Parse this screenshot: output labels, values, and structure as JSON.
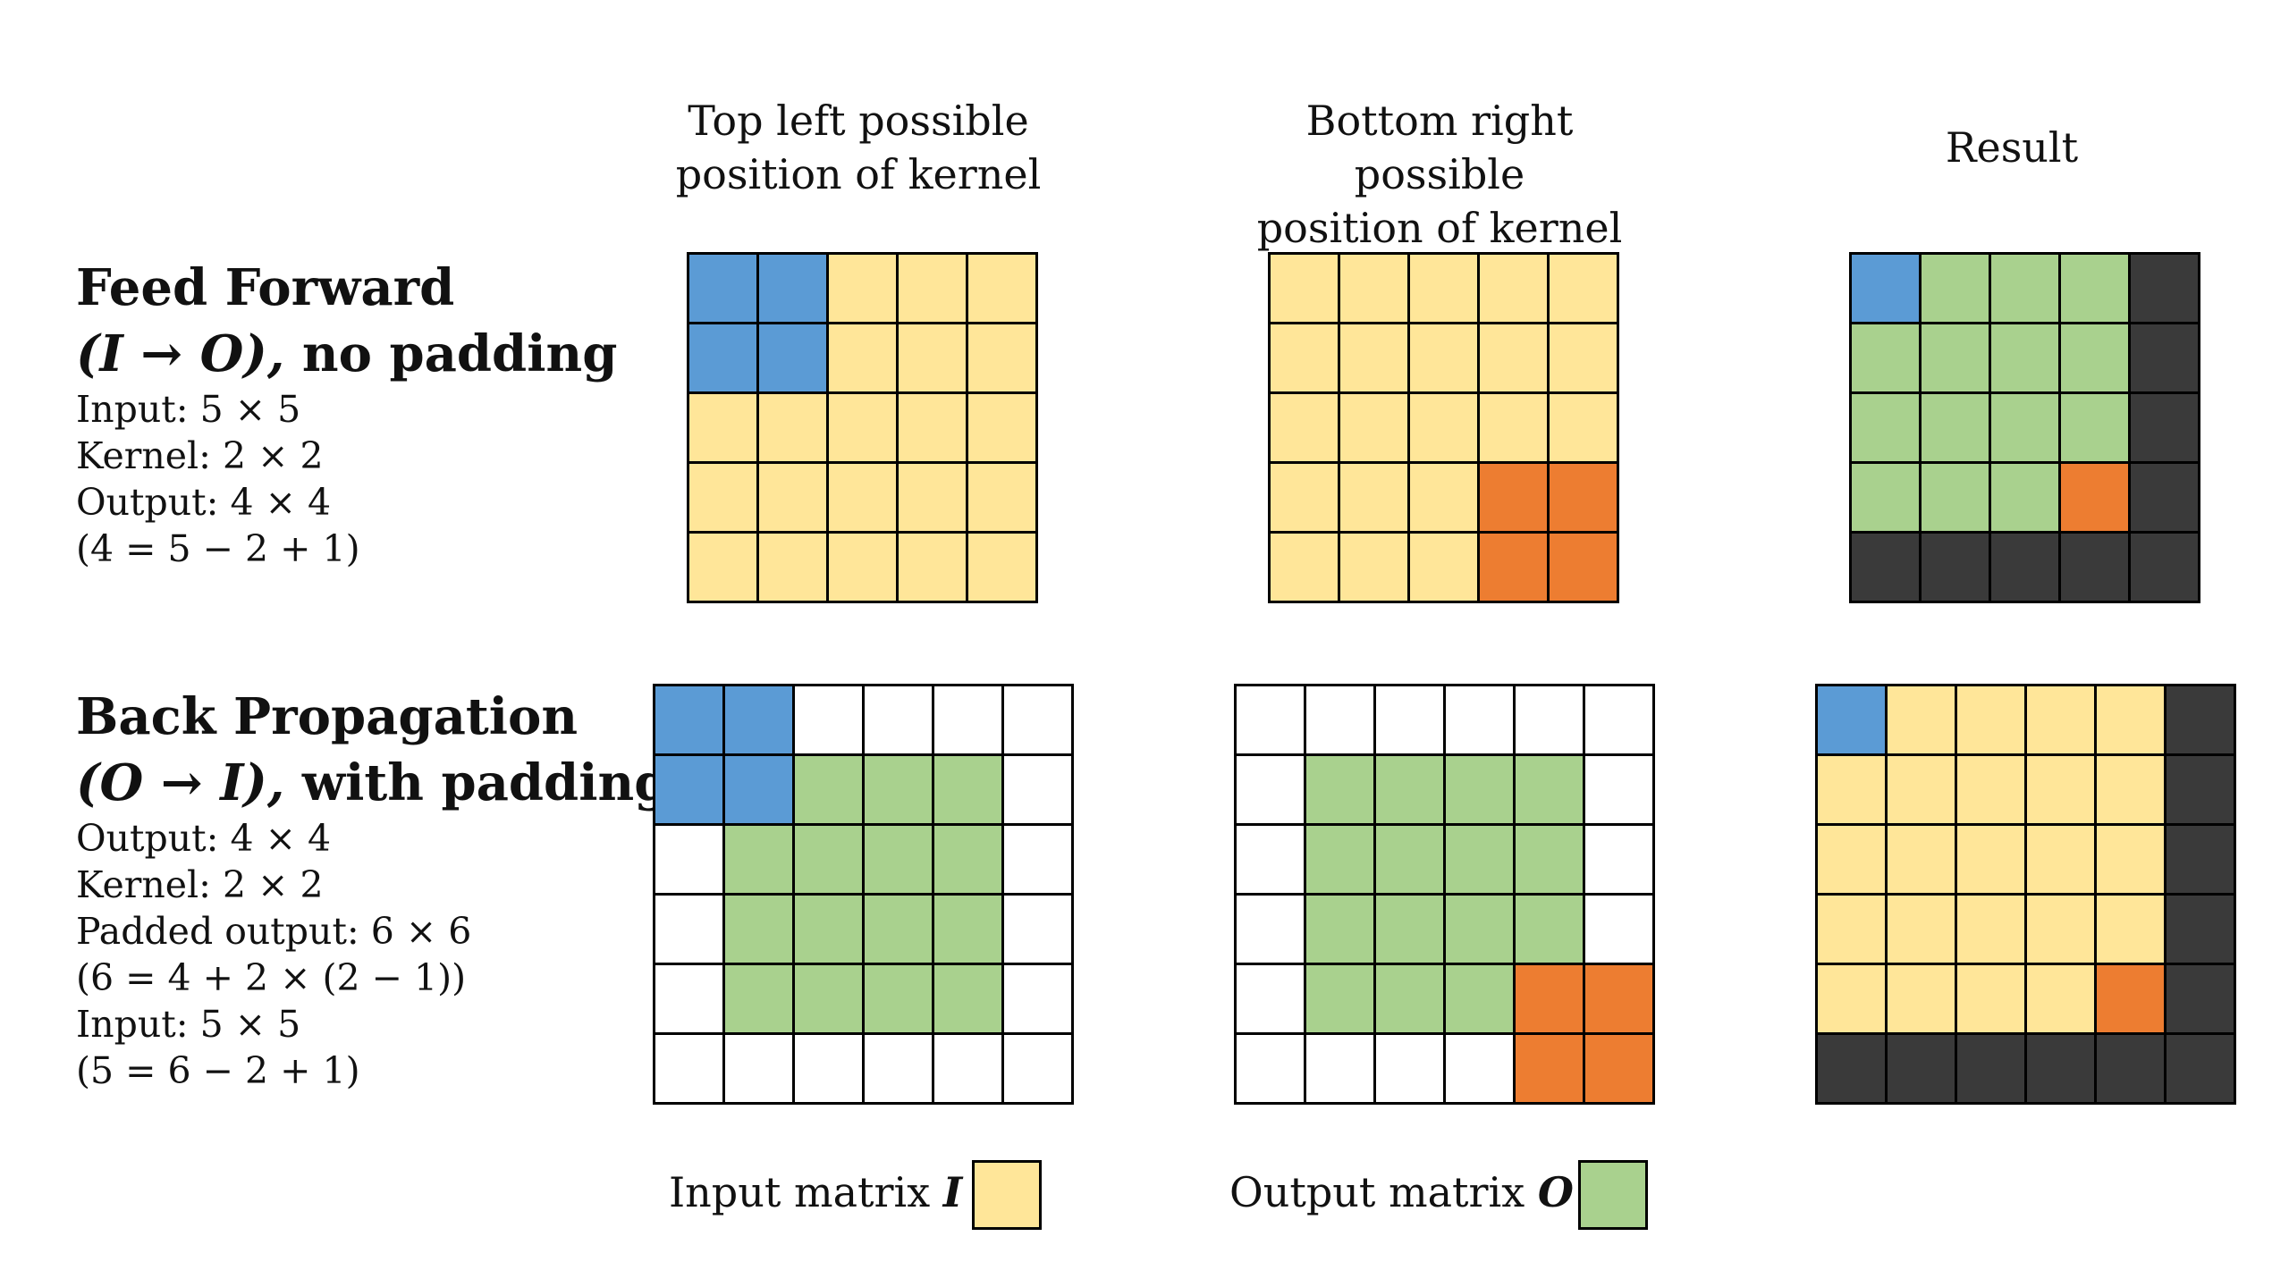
{
  "colors": {
    "input": "#FFE699",
    "output": "#A9D18E",
    "kernel_start": "#5B9BD5",
    "kernel_end": "#ED7D31",
    "dark": "#3A3A3A",
    "pad": "#FFFFFF"
  },
  "headers": {
    "col1": [
      "Top left possible",
      "position of kernel"
    ],
    "col2": [
      "Bottom right possible",
      "position of kernel"
    ],
    "col3": "Result"
  },
  "feed_forward": {
    "title_line1": "Feed Forward",
    "title_math": "(I → O),",
    "title_rest": " no padding",
    "lines": [
      "Input: 5 × 5",
      "Kernel: 2 × 2",
      "Output: 4 × 4",
      "(4 = 5 − 2 + 1)"
    ]
  },
  "back_propagation": {
    "title_line1": "Back Propagation",
    "title_math": "(O → I),",
    "title_rest": " with padding",
    "lines": [
      "Output: 4 × 4",
      "Kernel: 2 × 2",
      "Padded output: 6 × 6",
      "(6 = 4 + 2 × (2 − 1))",
      "Input: 5 × 5",
      "(5 = 6 − 2 + 1)"
    ]
  },
  "legend": {
    "input_label": "Input matrix ",
    "input_symbol": "I",
    "output_label": "Output matrix ",
    "output_symbol": "O"
  },
  "grids": {
    "ff_top_left": [
      "BBYYY",
      "BBYYY",
      "YYYYY",
      "YYYYY",
      "YYYYY"
    ],
    "ff_bottom_right": [
      "YYYYY",
      "YYYYY",
      "YYYYY",
      "YYYRR",
      "YYYRR"
    ],
    "ff_result": [
      "BGGGD",
      "GGGGD",
      "GGGGD",
      "GGGRD",
      "DDDDD"
    ],
    "bp_top_left": [
      "BBWWWW",
      "BBGGGW",
      "WGGGGW",
      "WGGGGW",
      "WGGGGW",
      "WWWWWW"
    ],
    "bp_bottom_right": [
      "WWWWWW",
      "WGGGGW",
      "WGGGGW",
      "WGGGGW",
      "WGGGRR",
      "WWWWRR"
    ],
    "bp_result": [
      "BYYYYD",
      "YYYYYD",
      "YYYYYD",
      "YYYYYD",
      "YYYYRD",
      "DDDDDD"
    ]
  }
}
